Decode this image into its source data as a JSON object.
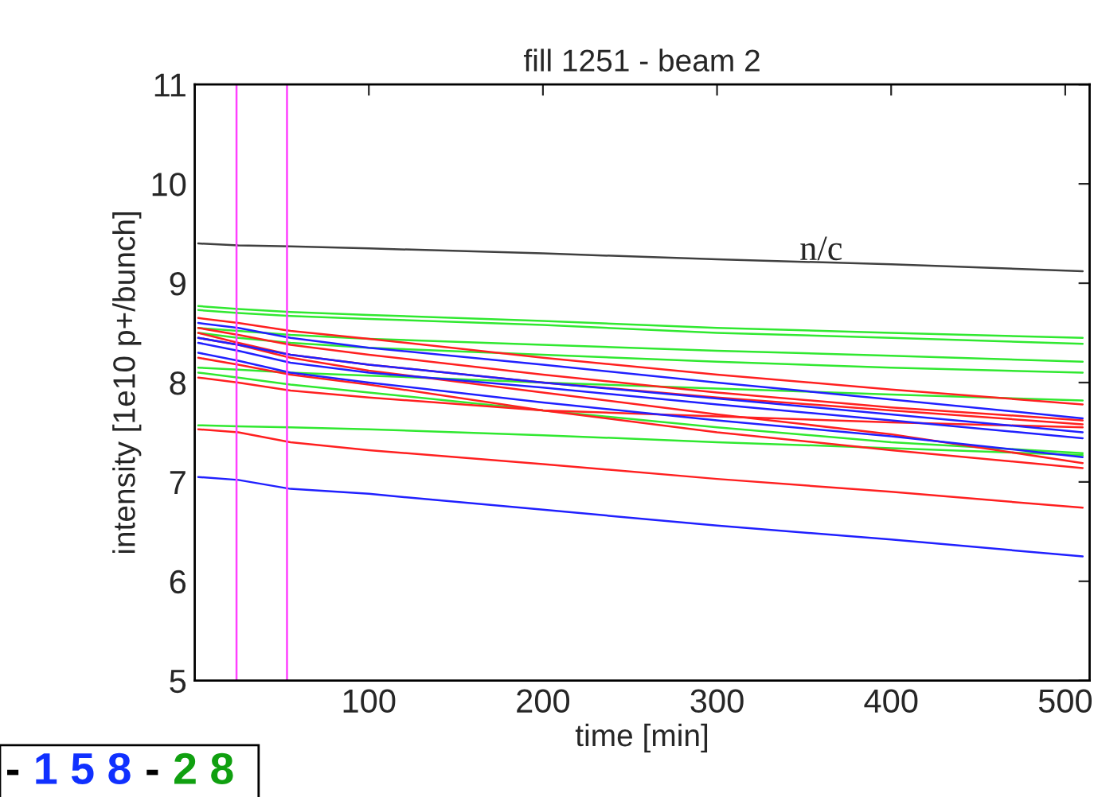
{
  "chart_data": {
    "type": "line",
    "title": "fill 1251 - beam 2",
    "xlabel": "time [min]",
    "ylabel": "intensity [1e10 p+/bunch]",
    "x": [
      2,
      25,
      55,
      100,
      200,
      300,
      400,
      510
    ],
    "xlim": [
      0,
      514
    ],
    "xticks": [
      100,
      200,
      300,
      400,
      500
    ],
    "ylim": [
      5,
      11
    ],
    "yticks": [
      5,
      6,
      7,
      8,
      9,
      10,
      11
    ],
    "grid": false,
    "legend": false,
    "marker": "none",
    "line_style": "solid",
    "series": [
      {
        "color": "#404040",
        "values": [
          9.4,
          9.38,
          9.37,
          9.35,
          9.3,
          9.24,
          9.19,
          9.12
        ]
      },
      {
        "color": "#30e830",
        "values": [
          8.77,
          8.74,
          8.71,
          8.68,
          8.62,
          8.55,
          8.5,
          8.45
        ]
      },
      {
        "color": "#30e830",
        "values": [
          8.73,
          8.7,
          8.67,
          8.64,
          8.58,
          8.5,
          8.45,
          8.39
        ]
      },
      {
        "color": "#30e830",
        "values": [
          8.55,
          8.52,
          8.48,
          8.44,
          8.38,
          8.32,
          8.27,
          8.21
        ]
      },
      {
        "color": "#30e830",
        "values": [
          8.5,
          8.45,
          8.4,
          8.35,
          8.28,
          8.21,
          8.15,
          8.1
        ]
      },
      {
        "color": "#30e830",
        "values": [
          8.15,
          8.13,
          8.1,
          8.07,
          8.0,
          7.94,
          7.88,
          7.82
        ]
      },
      {
        "color": "#30e830",
        "values": [
          8.1,
          8.05,
          7.98,
          7.9,
          7.72,
          7.55,
          7.4,
          7.29
        ]
      },
      {
        "color": "#30e830",
        "values": [
          7.57,
          7.56,
          7.55,
          7.53,
          7.47,
          7.4,
          7.34,
          7.27
        ]
      },
      {
        "color": "#ff2020",
        "values": [
          8.65,
          8.6,
          8.52,
          8.44,
          8.25,
          8.08,
          7.93,
          7.78
        ]
      },
      {
        "color": "#ff2020",
        "values": [
          8.55,
          8.48,
          8.38,
          8.28,
          8.08,
          7.9,
          7.75,
          7.62
        ]
      },
      {
        "color": "#ff2020",
        "values": [
          8.5,
          8.4,
          8.28,
          8.18,
          8.0,
          7.85,
          7.72,
          7.58
        ]
      },
      {
        "color": "#ff2020",
        "values": [
          8.45,
          8.38,
          8.25,
          8.12,
          7.9,
          7.68,
          7.48,
          7.19
        ]
      },
      {
        "color": "#ff2020",
        "values": [
          8.25,
          8.18,
          8.08,
          7.98,
          7.72,
          7.5,
          7.32,
          7.14
        ]
      },
      {
        "color": "#ff2020",
        "values": [
          8.05,
          8.0,
          7.92,
          7.85,
          7.72,
          7.66,
          7.6,
          7.55
        ]
      },
      {
        "color": "#ff2020",
        "values": [
          7.53,
          7.5,
          7.4,
          7.32,
          7.18,
          7.03,
          6.9,
          6.74
        ]
      },
      {
        "color": "#2020ff",
        "values": [
          8.6,
          8.55,
          8.45,
          8.35,
          8.18,
          8.0,
          7.83,
          7.64
        ]
      },
      {
        "color": "#2020ff",
        "values": [
          8.45,
          8.38,
          8.28,
          8.18,
          8.0,
          7.84,
          7.68,
          7.5
        ]
      },
      {
        "color": "#2020ff",
        "values": [
          8.3,
          8.22,
          8.1,
          8.0,
          7.8,
          7.62,
          7.46,
          7.25
        ]
      },
      {
        "color": "#2020ff",
        "values": [
          8.4,
          8.32,
          8.2,
          8.1,
          7.95,
          7.78,
          7.62,
          7.44
        ]
      },
      {
        "color": "#2020ff",
        "values": [
          7.05,
          7.02,
          6.93,
          6.88,
          6.72,
          6.56,
          6.42,
          6.25
        ]
      }
    ],
    "ref_lines": [
      {
        "axis": "x",
        "value": 24,
        "color": "#ff40ff"
      },
      {
        "axis": "x",
        "value": 53,
        "color": "#ff40ff"
      }
    ],
    "annotations": [
      "n/c",
      "-",
      "1 5 8",
      "-",
      "2 8"
    ]
  }
}
